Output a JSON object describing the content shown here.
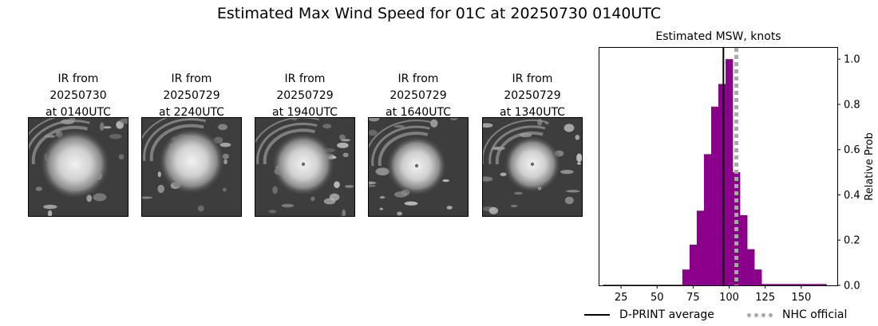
{
  "title": "Estimated Max Wind Speed for 01C at 20250730 0140UTC",
  "ir_panels": [
    {
      "line1": "IR from",
      "line2": "20250730",
      "line3": "at 0140UTC"
    },
    {
      "line1": "IR from",
      "line2": "20250729",
      "line3": "at 2240UTC"
    },
    {
      "line1": "IR from",
      "line2": "20250729",
      "line3": "at 1940UTC"
    },
    {
      "line1": "IR from",
      "line2": "20250729",
      "line3": "at 1640UTC"
    },
    {
      "line1": "IR from",
      "line2": "20250729",
      "line3": "at 1340UTC"
    }
  ],
  "legend": {
    "dprint_label": "D-PRINT average",
    "nhc_label": "NHC official"
  },
  "colors": {
    "bars": "#8b008b",
    "dprint_line": "#000000",
    "nhc_line": "#a9a9a9"
  },
  "chart_data": {
    "type": "bar",
    "title": "Estimated MSW, knots",
    "xlabel": "",
    "ylabel": "Relative Prob",
    "xlim": [
      10,
      175
    ],
    "ylim": [
      0,
      1.05
    ],
    "xticks": [
      25,
      50,
      75,
      100,
      125,
      150
    ],
    "yticks": [
      0.0,
      0.2,
      0.4,
      0.6,
      0.8,
      1.0
    ],
    "y_axis_side": "right",
    "bin_width": 5,
    "bins": [
      {
        "x": 15,
        "y": 0.003
      },
      {
        "x": 20,
        "y": 0.003
      },
      {
        "x": 25,
        "y": 0.003
      },
      {
        "x": 30,
        "y": 0.003
      },
      {
        "x": 35,
        "y": 0.003
      },
      {
        "x": 40,
        "y": 0.003
      },
      {
        "x": 45,
        "y": 0.003
      },
      {
        "x": 50,
        "y": 0.003
      },
      {
        "x": 55,
        "y": 0.003
      },
      {
        "x": 60,
        "y": 0.003
      },
      {
        "x": 65,
        "y": 0.003
      },
      {
        "x": 70,
        "y": 0.07
      },
      {
        "x": 75,
        "y": 0.18
      },
      {
        "x": 80,
        "y": 0.33
      },
      {
        "x": 85,
        "y": 0.58
      },
      {
        "x": 90,
        "y": 0.79
      },
      {
        "x": 95,
        "y": 0.89
      },
      {
        "x": 100,
        "y": 1.0
      },
      {
        "x": 105,
        "y": 0.5
      },
      {
        "x": 110,
        "y": 0.31
      },
      {
        "x": 115,
        "y": 0.16
      },
      {
        "x": 120,
        "y": 0.07
      },
      {
        "x": 125,
        "y": 0.006
      },
      {
        "x": 130,
        "y": 0.006
      },
      {
        "x": 135,
        "y": 0.006
      },
      {
        "x": 140,
        "y": 0.006
      },
      {
        "x": 145,
        "y": 0.006
      },
      {
        "x": 150,
        "y": 0.006
      },
      {
        "x": 155,
        "y": 0.006
      },
      {
        "x": 160,
        "y": 0.006
      },
      {
        "x": 165,
        "y": 0.006
      }
    ],
    "dprint_average": 96,
    "nhc_official": 105,
    "legend_position": "bottom"
  }
}
